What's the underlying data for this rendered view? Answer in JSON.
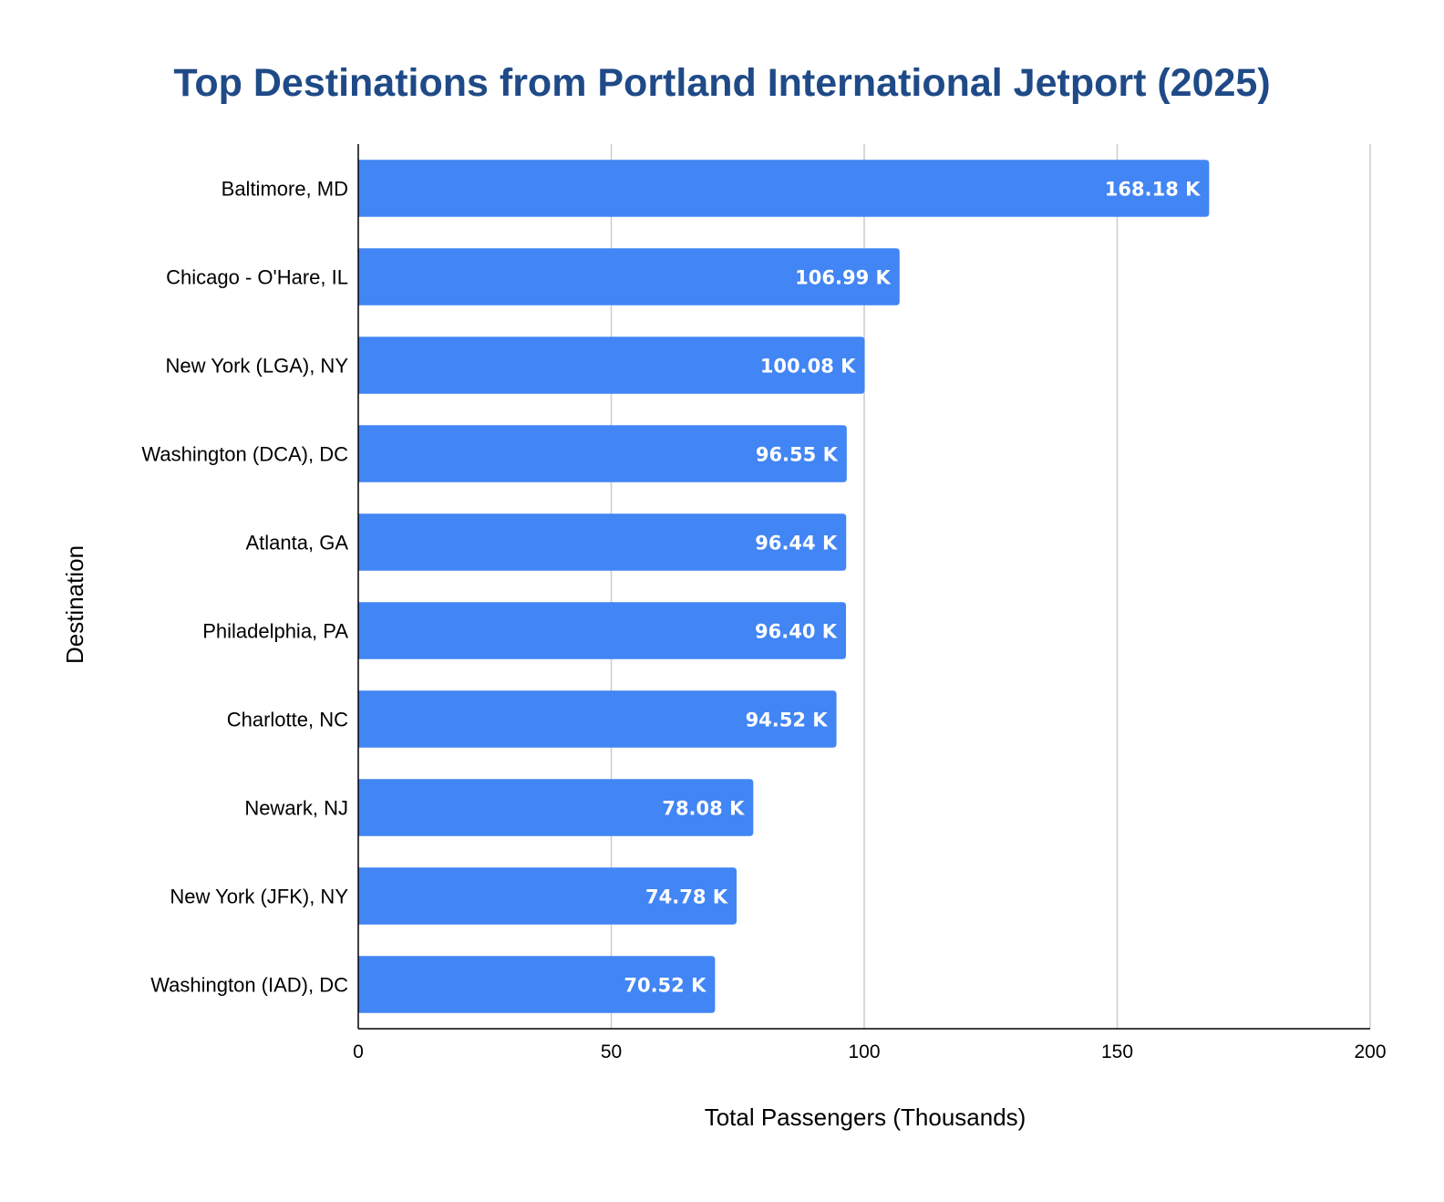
{
  "colors": {
    "title": "#1f4a87",
    "bar": "#4285f4",
    "grid": "#cccccc",
    "axis": "#000000",
    "data_label": "#ffffff"
  },
  "chart_data": {
    "type": "bar",
    "orientation": "horizontal",
    "title": "Top Destinations from Portland International Jetport (2025)",
    "xlabel": "Total Passengers (Thousands)",
    "ylabel": "Destination",
    "xlim": [
      0,
      200
    ],
    "xticks": [
      0,
      50,
      100,
      150,
      200
    ],
    "grid": true,
    "legend": "none",
    "categories": [
      "Baltimore, MD",
      "Chicago - O'Hare, IL",
      "New York (LGA), NY",
      "Washington (DCA), DC",
      "Atlanta, GA",
      "Philadelphia, PA",
      "Charlotte, NC",
      "Newark, NJ",
      "New York (JFK), NY",
      "Washington (IAD), DC"
    ],
    "values": [
      168.18,
      106.99,
      100.08,
      96.55,
      96.44,
      96.4,
      94.52,
      78.08,
      74.78,
      70.52
    ],
    "data_labels": [
      "168.18 K",
      "106.99 K",
      "100.08 K",
      "96.55 K",
      "96.44 K",
      "96.40 K",
      "94.52 K",
      "78.08 K",
      "74.78 K",
      "70.52 K"
    ]
  }
}
